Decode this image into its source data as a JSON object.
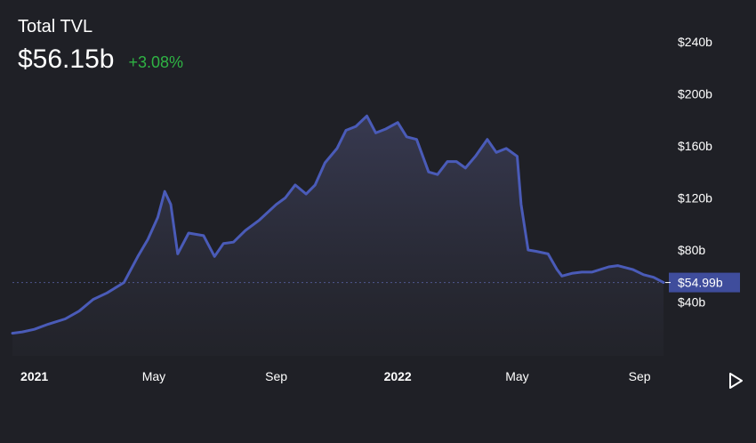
{
  "header": {
    "title": "Total TVL",
    "value": "$56.15b",
    "change": "+3.08%"
  },
  "colors": {
    "background": "#1f2026",
    "line": "#4a5bb8",
    "positive": "#2fb344",
    "axis_text": "#ffffff",
    "last_label_bg": "#3f4d9c"
  },
  "icons": {
    "play": "play-triangle-icon"
  },
  "chart_data": {
    "type": "area",
    "title": "Total TVL",
    "ylim": [
      0,
      250
    ],
    "y_ticks": [
      40,
      80,
      120,
      160,
      200,
      240
    ],
    "y_tick_labels": [
      "$40b",
      "$80b",
      "$120b",
      "$160b",
      "$200b",
      "$240b"
    ],
    "x_ticks": [
      "2021-01-01",
      "2021-05-01",
      "2021-09-01",
      "2022-01-01",
      "2022-05-01",
      "2022-09-01"
    ],
    "x_tick_labels": [
      "2021",
      "May",
      "Sep",
      "2022",
      "May",
      "Sep"
    ],
    "last_value": 54.99,
    "last_value_label": "$54.99b",
    "grid": false,
    "series": [
      {
        "x": [
          "2020-12-10",
          "2020-12-20",
          "2021-01-01",
          "2021-01-15",
          "2021-02-01",
          "2021-02-15",
          "2021-03-01",
          "2021-03-15",
          "2021-04-01",
          "2021-04-15",
          "2021-04-25",
          "2021-05-05",
          "2021-05-12",
          "2021-05-18",
          "2021-05-25",
          "2021-06-05",
          "2021-06-20",
          "2021-07-01",
          "2021-07-10",
          "2021-07-20",
          "2021-08-01",
          "2021-08-15",
          "2021-09-01",
          "2021-09-10",
          "2021-09-20",
          "2021-10-01",
          "2021-10-10",
          "2021-10-20",
          "2021-11-01",
          "2021-11-10",
          "2021-11-20",
          "2021-12-01",
          "2021-12-10",
          "2021-12-20",
          "2022-01-01",
          "2022-01-10",
          "2022-01-20",
          "2022-02-01",
          "2022-02-10",
          "2022-02-20",
          "2022-03-01",
          "2022-03-10",
          "2022-03-20",
          "2022-04-01",
          "2022-04-10",
          "2022-04-20",
          "2022-05-01",
          "2022-05-05",
          "2022-05-12",
          "2022-05-20",
          "2022-06-01",
          "2022-06-10",
          "2022-06-15",
          "2022-06-25",
          "2022-07-05",
          "2022-07-15",
          "2022-08-01",
          "2022-08-10",
          "2022-08-25",
          "2022-09-05",
          "2022-09-15",
          "2022-09-25"
        ],
        "values": [
          16,
          17,
          19,
          23,
          27,
          33,
          42,
          47,
          55,
          75,
          88,
          105,
          125,
          115,
          77,
          93,
          91,
          75,
          85,
          86,
          95,
          103,
          115,
          120,
          130,
          123,
          130,
          147,
          158,
          172,
          175,
          183,
          170,
          173,
          178,
          167,
          165,
          140,
          138,
          148,
          148,
          143,
          152,
          165,
          155,
          158,
          152,
          115,
          80,
          79,
          77,
          65,
          60,
          62,
          63,
          63,
          67,
          68,
          65,
          61,
          59,
          55
        ]
      }
    ]
  }
}
